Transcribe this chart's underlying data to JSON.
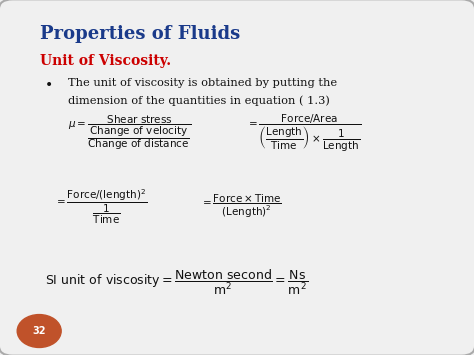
{
  "bg_color": "#f0f0f0",
  "title": "Properties of Fluids",
  "title_color": "#1a3a8a",
  "subtitle": "Unit of Viscosity.",
  "subtitle_color": "#cc0000",
  "bullet_text_line1": "The unit of viscosity is obtained by putting the",
  "bullet_text_line2": "dimension of the quantities in equation ( 1.3)",
  "page_num": "32",
  "page_bg": "#c0522a",
  "border_color": "#aaaaaa",
  "text_color": "#111111"
}
